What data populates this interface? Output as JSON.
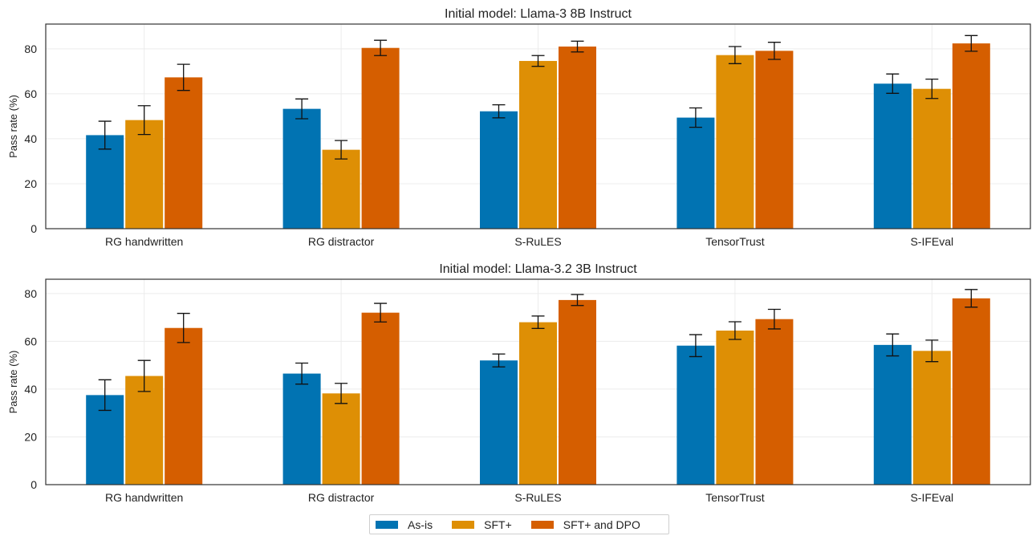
{
  "chart_data": [
    {
      "type": "bar",
      "title": "Initial model: Llama-3 8B Instruct",
      "ylabel": "Pass rate (%)",
      "xlabel": "",
      "categories": [
        "RG handwritten",
        "RG distractor",
        "S-RuLES",
        "TensorTrust",
        "S-IFEval"
      ],
      "ylim": [
        0,
        91
      ],
      "yticks": [
        0,
        20,
        40,
        60,
        80
      ],
      "grid": true,
      "series": [
        {
          "name": "As-is",
          "values": [
            41.6,
            53.3,
            52.2,
            49.4,
            64.5
          ],
          "err": [
            6.2,
            4.4,
            2.9,
            4.3,
            4.3
          ]
        },
        {
          "name": "SFT+",
          "values": [
            48.3,
            35.1,
            74.6,
            77.2,
            62.2
          ],
          "err": [
            6.4,
            4.1,
            2.4,
            3.8,
            4.3
          ]
        },
        {
          "name": "SFT+ and DPO",
          "values": [
            67.3,
            80.4,
            81.0,
            79.1,
            82.4
          ],
          "err": [
            5.8,
            3.4,
            2.4,
            3.8,
            3.5
          ]
        }
      ]
    },
    {
      "type": "bar",
      "title": "Initial model: Llama-3.2 3B Instruct",
      "ylabel": "Pass rate (%)",
      "xlabel": "",
      "categories": [
        "RG handwritten",
        "RG distractor",
        "S-RuLES",
        "TensorTrust",
        "S-IFEval"
      ],
      "ylim": [
        0,
        86
      ],
      "yticks": [
        0,
        20,
        40,
        60,
        80
      ],
      "grid": true,
      "series": [
        {
          "name": "As-is",
          "values": [
            37.5,
            46.5,
            52.0,
            58.2,
            58.5
          ],
          "err": [
            6.4,
            4.4,
            2.7,
            4.6,
            4.6
          ]
        },
        {
          "name": "SFT+",
          "values": [
            45.5,
            38.2,
            68.0,
            64.5,
            56.0
          ],
          "err": [
            6.5,
            4.2,
            2.6,
            3.7,
            4.5
          ]
        },
        {
          "name": "SFT+ and DPO",
          "values": [
            65.6,
            72.0,
            77.3,
            69.3,
            78.0
          ],
          "err": [
            6.1,
            3.9,
            2.3,
            4.1,
            3.7
          ]
        }
      ]
    }
  ],
  "legend": {
    "placement": "bottom-center",
    "items": [
      {
        "label": "As-is",
        "color": "#0173b2"
      },
      {
        "label": "SFT+",
        "color": "#de8f05"
      },
      {
        "label": "SFT+ and DPO",
        "color": "#d55e00"
      }
    ]
  },
  "colors": {
    "As-is": "#0173b2",
    "SFT+": "#de8f05",
    "SFT+ and DPO": "#d55e00"
  }
}
